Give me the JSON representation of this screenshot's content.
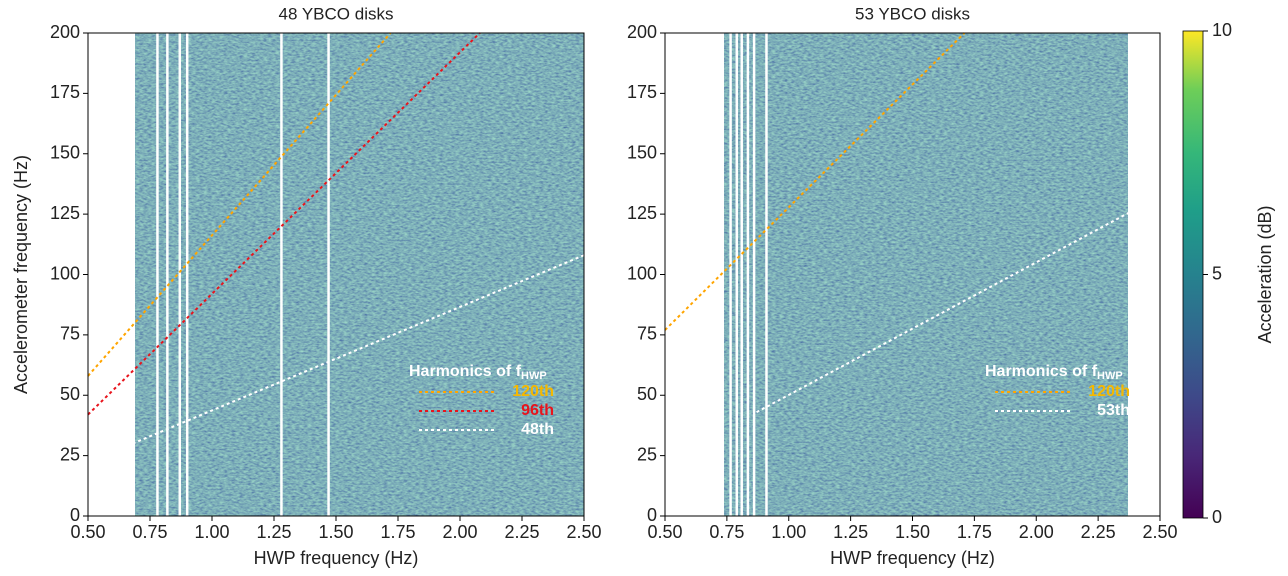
{
  "chart_data": [
    {
      "type": "spectrogram",
      "title": "48 YBCO disks",
      "xlabel": "HWP frequency (Hz)",
      "ylabel": "Accelerometer frequency (Hz)",
      "xlim": [
        0.5,
        2.5
      ],
      "ylim": [
        0,
        200
      ],
      "xticks": [
        {
          "value": 0.5,
          "label": "0.50"
        },
        {
          "value": 0.75,
          "label": "0.75"
        },
        {
          "value": 1.0,
          "label": "1.00"
        },
        {
          "value": 1.25,
          "label": "1.25"
        },
        {
          "value": 1.5,
          "label": "1.50"
        },
        {
          "value": 1.75,
          "label": "1.75"
        },
        {
          "value": 2.0,
          "label": "2.00"
        },
        {
          "value": 2.25,
          "label": "2.25"
        },
        {
          "value": 2.5,
          "label": "2.50"
        }
      ],
      "yticks": [
        0,
        25,
        50,
        75,
        100,
        125,
        150,
        175,
        200
      ],
      "data_xrange": [
        0.69,
        2.5
      ],
      "gaps": [
        0.78,
        0.82,
        0.87,
        0.9,
        1.28,
        1.47
      ],
      "legend_title": "Harmonics of f",
      "legend_title_sub": "HWP",
      "legend": "lower right",
      "series": [
        {
          "name": "120th",
          "color": "#ffa500",
          "label_color": "#f5b800",
          "x": [
            0.5,
            1.72
          ],
          "values": [
            58,
            200
          ]
        },
        {
          "name": "96th",
          "color": "#e8141c",
          "label_color": "#e8141c",
          "x": [
            0.5,
            2.08
          ],
          "values": [
            42,
            200
          ]
        },
        {
          "name": "48th",
          "color": "#ffffff",
          "label_color": "#ffffff",
          "x": [
            0.68,
            2.5
          ],
          "values": [
            30,
            108
          ]
        }
      ]
    },
    {
      "type": "spectrogram",
      "title": "53 YBCO disks",
      "xlabel": "HWP frequency (Hz)",
      "xlim": [
        0.5,
        2.5
      ],
      "ylim": [
        0,
        200
      ],
      "xticks": [
        {
          "value": 0.5,
          "label": "0.50"
        },
        {
          "value": 0.75,
          "label": "0.75"
        },
        {
          "value": 1.0,
          "label": "1.00"
        },
        {
          "value": 1.25,
          "label": "1.25"
        },
        {
          "value": 1.5,
          "label": "1.50"
        },
        {
          "value": 1.75,
          "label": "1.75"
        },
        {
          "value": 2.0,
          "label": "2.00"
        },
        {
          "value": 2.25,
          "label": "2.25"
        },
        {
          "value": 2.5,
          "label": "2.50"
        }
      ],
      "yticks": [
        0,
        25,
        50,
        75,
        100,
        125,
        150,
        175,
        200
      ],
      "data_xrange": [
        0.74,
        2.37
      ],
      "gaps": [
        0.765,
        0.79,
        0.81,
        0.835,
        0.86,
        0.91
      ],
      "legend_title": "Harmonics of f",
      "legend_title_sub": "HWP",
      "legend": "lower right",
      "series": [
        {
          "name": "120th",
          "color": "#ffa500",
          "label_color": "#f5b800",
          "x": [
            0.5,
            1.71
          ],
          "values": [
            77,
            200
          ]
        },
        {
          "name": "53th",
          "color": "#ffffff",
          "label_color": "#ffffff",
          "x": [
            0.87,
            2.4
          ],
          "values": [
            43,
            127
          ]
        }
      ]
    }
  ],
  "colorbar": {
    "label": "Acceleration (dB)",
    "lim": [
      0,
      10
    ],
    "ticks": [
      0,
      5,
      10
    ]
  }
}
